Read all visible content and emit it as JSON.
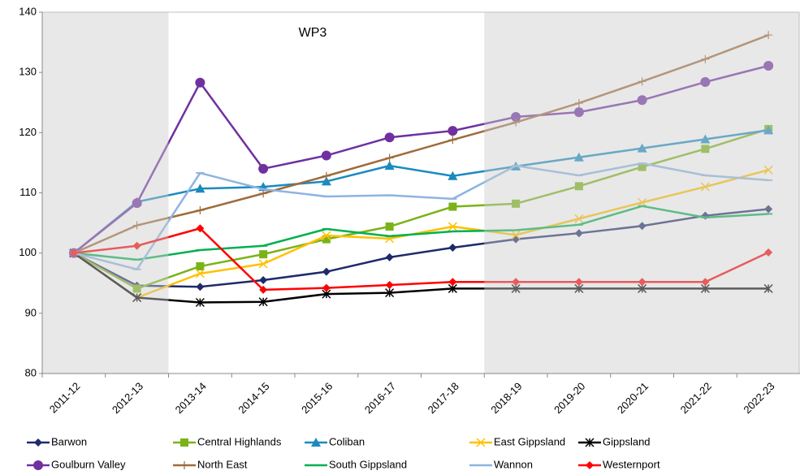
{
  "chart_data": {
    "type": "line",
    "title": "WP3",
    "categories": [
      "2011-12",
      "2012-13",
      "2013-14",
      "2014-15",
      "2015-16",
      "2016-17",
      "2017-18",
      "2018-19",
      "2019-20",
      "2020-21",
      "2021-22",
      "2022-23"
    ],
    "ylim": [
      80,
      140
    ],
    "yticks": [
      80,
      90,
      100,
      110,
      120,
      130,
      140
    ],
    "series": [
      {
        "name": "Barwon",
        "color": "#1f2a6b",
        "marker": "diamond",
        "values": [
          100,
          94.6,
          94.4,
          95.5,
          96.9,
          99.3,
          100.9,
          102.3,
          103.3,
          104.5,
          106.2,
          107.3
        ]
      },
      {
        "name": "Central Highlands",
        "color": "#7ab317",
        "marker": "square",
        "values": [
          100,
          94.1,
          97.8,
          99.8,
          102.3,
          104.4,
          107.7,
          108.2,
          111.1,
          114.3,
          117.3,
          120.6
        ]
      },
      {
        "name": "Coliban",
        "color": "#1a8ac0",
        "marker": "triangle",
        "values": [
          100,
          108.5,
          110.7,
          111,
          111.9,
          114.5,
          112.8,
          114.4,
          115.9,
          117.4,
          118.9,
          120.4
        ]
      },
      {
        "name": "East Gippsland",
        "color": "#ffc000",
        "marker": "x",
        "values": [
          100,
          92.6,
          96.6,
          98.2,
          102.9,
          102.4,
          104.4,
          103.0,
          105.7,
          108.4,
          111,
          113.8
        ]
      },
      {
        "name": "Gippsland",
        "color": "#000000",
        "marker": "star",
        "values": [
          100,
          92.6,
          91.8,
          91.9,
          93.2,
          93.4,
          94.1,
          94.1,
          94.1,
          94.1,
          94.1,
          94.1
        ]
      },
      {
        "name": "Goulburn Valley",
        "color": "#7030a0",
        "marker": "circle",
        "values": [
          100,
          108.3,
          128.3,
          114,
          116.2,
          119.2,
          120.3,
          122.6,
          123.4,
          125.4,
          128.4,
          131.1
        ]
      },
      {
        "name": "North East",
        "color": "#9e6b3a",
        "marker": "plus",
        "values": [
          100,
          104.6,
          107.1,
          109.9,
          112.8,
          115.8,
          118.8,
          121.7,
          124.9,
          128.5,
          132.2,
          136.2
        ]
      },
      {
        "name": "South Gippsland",
        "color": "#00b050",
        "marker": "dash",
        "values": [
          100,
          98.9,
          100.5,
          101.2,
          104,
          102.8,
          103.6,
          103.8,
          104.7,
          107.8,
          105.9,
          106.5
        ]
      },
      {
        "name": "Wannon",
        "color": "#8db4e2",
        "marker": "dash",
        "values": [
          100,
          97.3,
          113.3,
          110.6,
          109.4,
          109.6,
          109,
          114.5,
          112.9,
          114.9,
          112.9,
          112.1
        ]
      },
      {
        "name": "Westernport",
        "color": "#ff0000",
        "marker": "diamond",
        "values": [
          100,
          101.2,
          104.1,
          93.9,
          94.2,
          94.7,
          95.2,
          95.2,
          95.2,
          95.2,
          95.2,
          100.1
        ]
      }
    ]
  }
}
